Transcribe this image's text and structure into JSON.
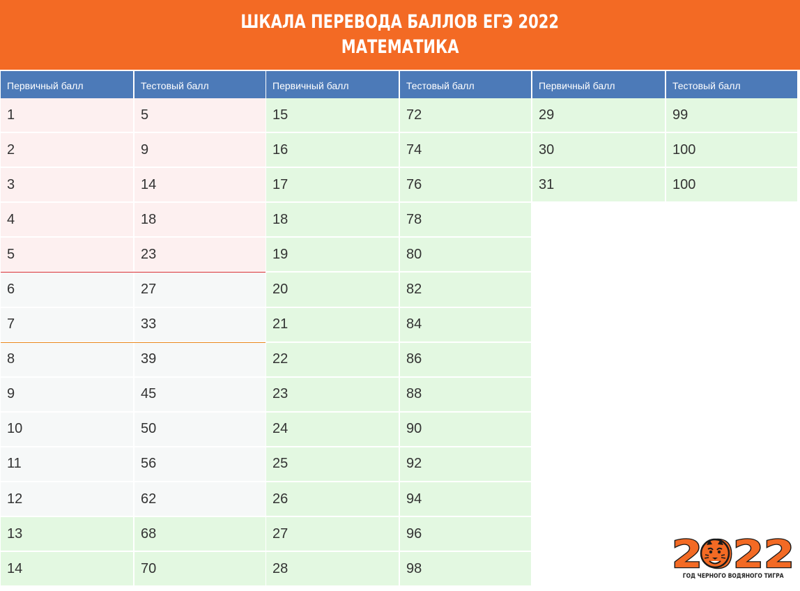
{
  "header": {
    "title_line1": "ШКАЛА ПЕРЕВОДА БАЛЛОВ ЕГЭ 2022",
    "title_line2": "МАТЕМАТИКА"
  },
  "columns": {
    "primary": "Первичный балл",
    "test": "Тестовый балл"
  },
  "tables": [
    {
      "rows": [
        {
          "primary": "1",
          "test": "5",
          "zone": "pink"
        },
        {
          "primary": "2",
          "test": "9",
          "zone": "pink"
        },
        {
          "primary": "3",
          "test": "14",
          "zone": "pink"
        },
        {
          "primary": "4",
          "test": "18",
          "zone": "pink"
        },
        {
          "primary": "5",
          "test": "23",
          "zone": "pink"
        },
        {
          "primary": "6",
          "test": "27",
          "zone": "gray"
        },
        {
          "primary": "7",
          "test": "33",
          "zone": "gray"
        },
        {
          "primary": "8",
          "test": "39",
          "zone": "gray"
        },
        {
          "primary": "9",
          "test": "45",
          "zone": "gray"
        },
        {
          "primary": "10",
          "test": "50",
          "zone": "gray"
        },
        {
          "primary": "11",
          "test": "56",
          "zone": "gray"
        },
        {
          "primary": "12",
          "test": "62",
          "zone": "gray"
        },
        {
          "primary": "13",
          "test": "68",
          "zone": "green"
        },
        {
          "primary": "14",
          "test": "70",
          "zone": "green"
        }
      ]
    },
    {
      "rows": [
        {
          "primary": "15",
          "test": "72",
          "zone": "green"
        },
        {
          "primary": "16",
          "test": "74",
          "zone": "green"
        },
        {
          "primary": "17",
          "test": "76",
          "zone": "green"
        },
        {
          "primary": "18",
          "test": "78",
          "zone": "green"
        },
        {
          "primary": "19",
          "test": "80",
          "zone": "green"
        },
        {
          "primary": "20",
          "test": "82",
          "zone": "green"
        },
        {
          "primary": "21",
          "test": "84",
          "zone": "green"
        },
        {
          "primary": "22",
          "test": "86",
          "zone": "green"
        },
        {
          "primary": "23",
          "test": "88",
          "zone": "green"
        },
        {
          "primary": "24",
          "test": "90",
          "zone": "green"
        },
        {
          "primary": "25",
          "test": "92",
          "zone": "green"
        },
        {
          "primary": "26",
          "test": "94",
          "zone": "green"
        },
        {
          "primary": "27",
          "test": "96",
          "zone": "green"
        },
        {
          "primary": "28",
          "test": "98",
          "zone": "green"
        }
      ]
    },
    {
      "rows": [
        {
          "primary": "29",
          "test": "99",
          "zone": "green"
        },
        {
          "primary": "30",
          "test": "100",
          "zone": "green"
        },
        {
          "primary": "31",
          "test": "100",
          "zone": "green"
        }
      ]
    }
  ],
  "zone_colors": {
    "pink": "#fdf0f0",
    "gray": "#f6f8f8",
    "green": "#e3f8e1",
    "header_orange": "#f36a24",
    "column_header_blue": "#4c7ab8",
    "min_threshold_line": "#d9262b",
    "profile_threshold_line": "#e8871c"
  },
  "logo": {
    "year": "2022",
    "caption": "ГОД ЧЕРНОГО ВОДЯНОГО ТИГРА",
    "icon": "tiger-head-icon"
  }
}
